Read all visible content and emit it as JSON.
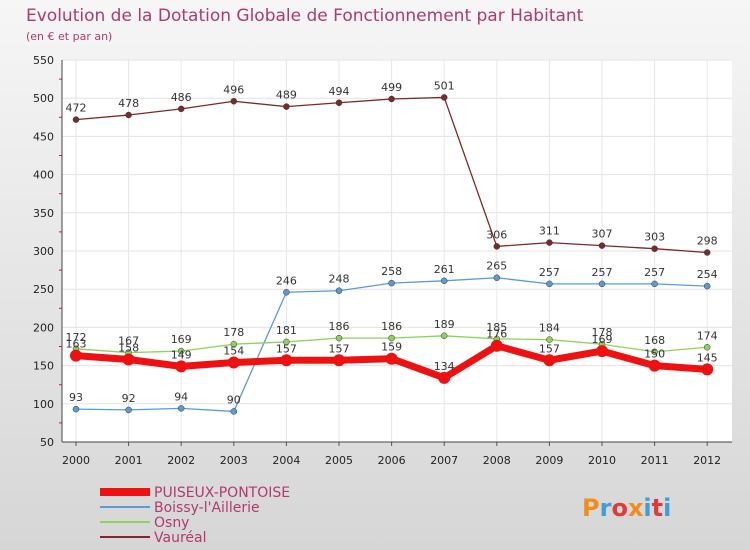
{
  "chart_data": {
    "type": "line",
    "title": "Evolution de la Dotation Globale de Fonctionnement par Habitant",
    "subtitle": "(en € et par an)",
    "xlabel": "",
    "ylabel": "",
    "ylim": [
      50,
      550
    ],
    "yticks": [
      50,
      100,
      150,
      200,
      250,
      300,
      350,
      400,
      450,
      500,
      550
    ],
    "categories": [
      "2000",
      "2001",
      "2002",
      "2003",
      "2004",
      "2005",
      "2006",
      "2007",
      "2008",
      "2009",
      "2010",
      "2011",
      "2012"
    ],
    "series": [
      {
        "name": "Vauréal",
        "color": "#7a2a2a",
        "values": [
          472,
          478,
          486,
          496,
          489,
          494,
          499,
          501,
          306,
          311,
          307,
          303,
          298
        ]
      },
      {
        "name": "Boissy-l'Aillerie",
        "color": "#5b9bd5",
        "values": [
          93,
          92,
          94,
          90,
          246,
          248,
          258,
          261,
          265,
          257,
          257,
          257,
          254
        ]
      },
      {
        "name": "Osny",
        "color": "#8fd15a",
        "values": [
          172,
          167,
          169,
          178,
          181,
          186,
          186,
          189,
          185,
          184,
          178,
          168,
          174
        ]
      },
      {
        "name": "PUISEUX-PONTOISE",
        "color": "#ee1111",
        "values": [
          163,
          158,
          149,
          154,
          157,
          157,
          159,
          134,
          176,
          157,
          169,
          150,
          145
        ]
      }
    ],
    "legend": [
      "PUISEUX-PONTOISE",
      "Boissy-l'Aillerie",
      "Osny",
      "Vauréal"
    ],
    "legend_position": "bottom-left",
    "grid": true
  },
  "logo": {
    "text": "Proxiti"
  }
}
